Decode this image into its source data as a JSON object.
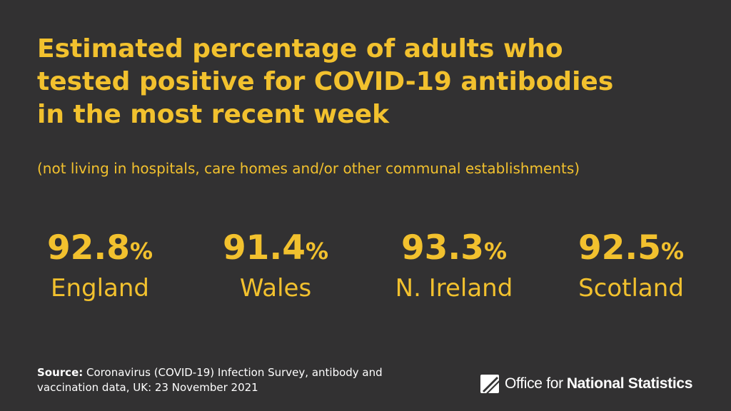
{
  "colors": {
    "background": "#323132",
    "accent": "#F2C12E",
    "text": "#FFFFFF"
  },
  "title_lines": [
    "Estimated percentage of adults who",
    "tested positive for COVID-19 antibodies",
    "in the most recent week"
  ],
  "subtitle": "(not living in hospitals, care homes and/or other communal establishments)",
  "chart_data": {
    "type": "table",
    "title": "Estimated percentage of adults who tested positive for COVID-19 antibodies in the most recent week",
    "subtitle": "(not living in hospitals, care homes and/or other communal establishments)",
    "unit": "%",
    "categories": [
      "England",
      "Wales",
      "N. Ireland",
      "Scotland"
    ],
    "values": [
      92.8,
      91.4,
      93.3,
      92.5
    ],
    "display_values": [
      "92.8",
      "91.4",
      "93.3",
      "92.5"
    ]
  },
  "source": {
    "label": "Source:",
    "text": "Coronavirus (COVID-19) Infection Survey, antibody and vaccination data, UK: 23 November 2021"
  },
  "logo": {
    "icon": "ons-logo-icon",
    "text_regular": "Office for",
    "text_bold": "National Statistics"
  }
}
